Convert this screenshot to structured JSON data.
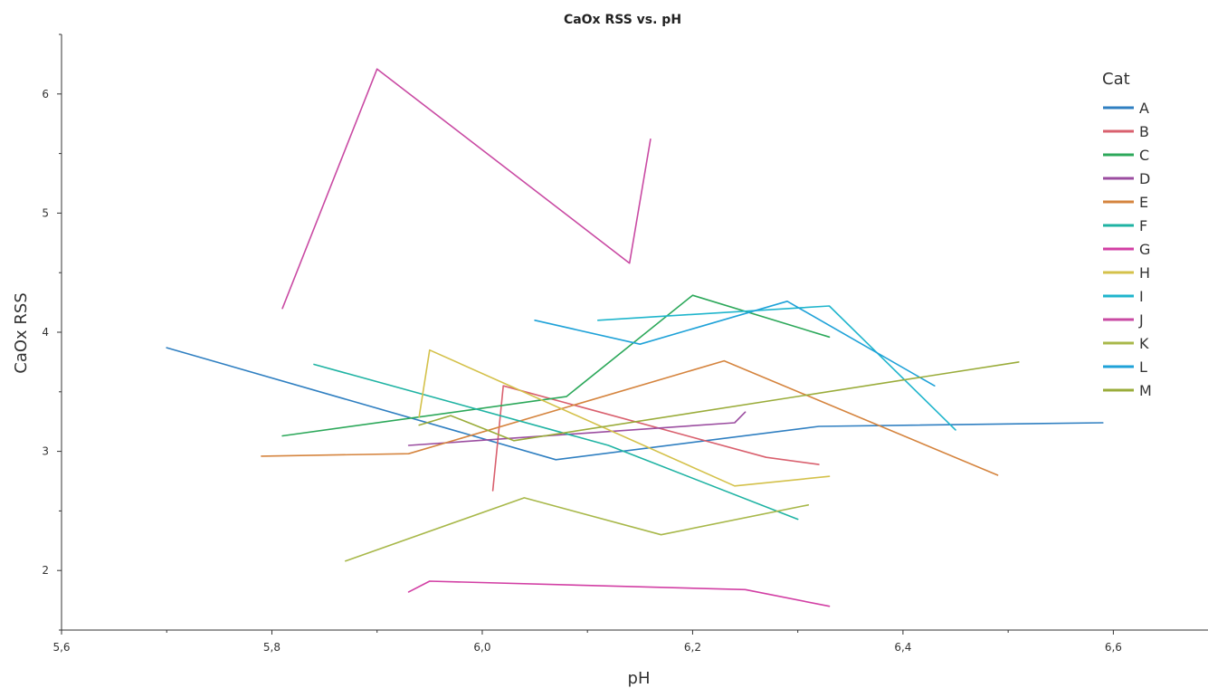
{
  "chart_data": {
    "type": "line",
    "title": "CaOx RSS vs. pH",
    "xlabel": "pH",
    "ylabel": "CaOx RSS",
    "xlim": [
      5.6,
      6.69
    ],
    "ylim": [
      1.5,
      6.5
    ],
    "x_ticks": [
      5.6,
      5.8,
      6.0,
      6.2,
      6.4,
      6.6
    ],
    "x_tick_labels": [
      "5,6",
      "5,8",
      "6,0",
      "6,2",
      "6,4",
      "6,6"
    ],
    "y_ticks": [
      2,
      3,
      4,
      5,
      6
    ],
    "y_tick_labels": [
      "2",
      "3",
      "4",
      "5",
      "6"
    ],
    "legend_title": "Cat",
    "legend_position": "top-right",
    "grid": false,
    "series": [
      {
        "name": "A",
        "color": "#2f7fc1",
        "points": [
          [
            5.7,
            3.87
          ],
          [
            6.07,
            2.93
          ],
          [
            6.32,
            3.21
          ],
          [
            6.59,
            3.24
          ]
        ]
      },
      {
        "name": "B",
        "color": "#d9606e",
        "points": [
          [
            6.01,
            2.67
          ],
          [
            6.02,
            3.55
          ],
          [
            6.27,
            2.95
          ],
          [
            6.32,
            2.89
          ]
        ]
      },
      {
        "name": "C",
        "color": "#2ca85a",
        "points": [
          [
            5.81,
            3.13
          ],
          [
            6.08,
            3.46
          ],
          [
            6.2,
            4.31
          ],
          [
            6.33,
            3.96
          ]
        ]
      },
      {
        "name": "D",
        "color": "#9b4da0",
        "points": [
          [
            5.93,
            3.05
          ],
          [
            6.24,
            3.24
          ],
          [
            6.25,
            3.33
          ]
        ]
      },
      {
        "name": "E",
        "color": "#d5843e",
        "points": [
          [
            5.79,
            2.96
          ],
          [
            5.93,
            2.98
          ],
          [
            6.23,
            3.76
          ],
          [
            6.49,
            2.8
          ]
        ]
      },
      {
        "name": "F",
        "color": "#1fb3a3",
        "points": [
          [
            5.84,
            3.73
          ],
          [
            6.12,
            3.05
          ],
          [
            6.3,
            2.43
          ]
        ]
      },
      {
        "name": "G",
        "color": "#d23fa4",
        "points": [
          [
            5.93,
            1.82
          ],
          [
            5.95,
            1.91
          ],
          [
            6.25,
            1.84
          ],
          [
            6.33,
            1.7
          ]
        ]
      },
      {
        "name": "H",
        "color": "#d4c14a",
        "points": [
          [
            5.94,
            3.29
          ],
          [
            5.95,
            3.85
          ],
          [
            6.24,
            2.71
          ],
          [
            6.33,
            2.79
          ]
        ]
      },
      {
        "name": "I",
        "color": "#1fb5cc",
        "points": [
          [
            6.11,
            4.1
          ],
          [
            6.33,
            4.22
          ],
          [
            6.45,
            3.18
          ]
        ]
      },
      {
        "name": "J",
        "color": "#c94aa3",
        "points": [
          [
            5.81,
            4.2
          ],
          [
            5.9,
            6.21
          ],
          [
            6.14,
            4.58
          ],
          [
            6.16,
            5.62
          ]
        ]
      },
      {
        "name": "K",
        "color": "#a8b84a",
        "points": [
          [
            5.87,
            2.08
          ],
          [
            6.04,
            2.61
          ],
          [
            6.17,
            2.3
          ],
          [
            6.31,
            2.55
          ]
        ]
      },
      {
        "name": "L",
        "color": "#1fa2d8",
        "points": [
          [
            6.05,
            4.1
          ],
          [
            6.15,
            3.9
          ],
          [
            6.29,
            4.26
          ],
          [
            6.43,
            3.55
          ]
        ]
      },
      {
        "name": "M",
        "color": "#9aac3a",
        "points": [
          [
            5.94,
            3.22
          ],
          [
            5.97,
            3.3
          ],
          [
            6.03,
            3.09
          ],
          [
            6.51,
            3.75
          ]
        ]
      }
    ]
  }
}
